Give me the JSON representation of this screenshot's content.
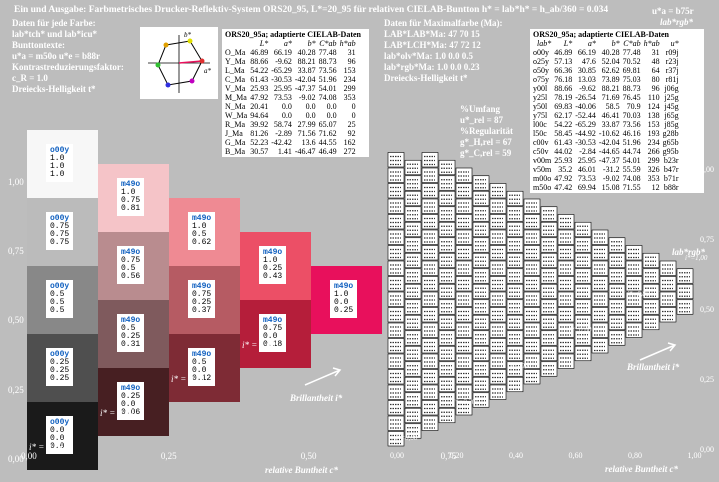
{
  "header": {
    "title": "Ein und Ausgabe: Farbmetrisches Drucker-Reflektiv-System ORS20_95, L*=20_95 für relativen CIELAB-Buntton h* = lab*h* = h_ab/360 = 0.034",
    "left_lines": [
      "Daten für jede Farbe:",
      "lab*tch* und lab*icu*",
      "Bunttontexte:",
      "u*a = m50o  u*e = b88r",
      "Kontrastreduzierungsfaktor:",
      "c_R = 1.0",
      "Dreiecks-Helligkeit t*"
    ],
    "top_right_1": "u*a = b75r",
    "top_right_2": "lab*rgb*",
    "mid_lines": [
      "Daten für Maximalfarbe (Ma):",
      "LAB*LAB*Ma: 47  70  15",
      "LAB*LCH*Ma: 47  72  12",
      "lab*olv*Ma: 1.0  0.0  0.5",
      "lab*rgb*Ma: 1.0  0.0  0.23",
      "Dreiecks-Helligkeit t*"
    ],
    "stats": [
      "%Umfang",
      "u*_rel = 87",
      "%Regularität",
      "g*_H,rel = 67",
      "g*_C,rel = 59"
    ],
    "diagram_labels": {
      "b": "b*",
      "a": "a*",
      "sub": "a"
    }
  },
  "table_left": {
    "title": "ORS20_95a; adaptierte CIELAB-Daten",
    "headers": [
      "",
      "L*",
      "a*",
      "b*",
      "C*ab",
      "h*ab"
    ],
    "rows": [
      [
        "O_Ma",
        "46.89",
        "66.19",
        "40.28",
        "77.48",
        "31"
      ],
      [
        "Y_Ma",
        "88.66",
        "-9.62",
        "88.21",
        "88.73",
        "96"
      ],
      [
        "L_Ma",
        "54.22",
        "-65.29",
        "33.87",
        "73.56",
        "153"
      ],
      [
        "C_Ma",
        "61.43",
        "-30.53",
        "-42.04",
        "51.96",
        "234"
      ],
      [
        "V_Ma",
        "25.93",
        "25.95",
        "-47.37",
        "54.01",
        "299"
      ],
      [
        "M_Ma",
        "47.92",
        "73.53",
        "-9.02",
        "74.08",
        "353"
      ],
      [
        "N_Ma",
        "20.41",
        "0.0",
        "0.0",
        "0.0",
        "0"
      ],
      [
        "W_Ma",
        "94.64",
        "0.0",
        "0.0",
        "0.0",
        "0"
      ],
      [
        "R_Ma",
        "39.92",
        "58.74",
        "27.99",
        "65.07",
        "25"
      ],
      [
        "J_Ma",
        "81.26",
        "-2.89",
        "71.56",
        "71.62",
        "92"
      ],
      [
        "G_Ma",
        "52.23",
        "-42.42",
        "13.6",
        "44.55",
        "162"
      ],
      [
        "B_Ma",
        "30.57",
        "1.41",
        "-46.47",
        "46.49",
        "272"
      ]
    ]
  },
  "table_right": {
    "title": "ORS20_95a; adaptierte CIELAB-Daten",
    "headers": [
      "lab*",
      "L*",
      "a*",
      "b*",
      "C*ab",
      "h*ab",
      "u*"
    ],
    "rows": [
      [
        "o00y",
        "46.89",
        "66.19",
        "40.28",
        "77.48",
        "31",
        "r09j"
      ],
      [
        "o25y",
        "57.13",
        "47.6",
        "52.04",
        "70.52",
        "48",
        "r23j"
      ],
      [
        "o50y",
        "66.36",
        "30.85",
        "62.62",
        "69.81",
        "64",
        "r37j"
      ],
      [
        "o75y",
        "76.18",
        "13.03",
        "73.89",
        "75.03",
        "80",
        "r81j"
      ],
      [
        "y00l",
        "88.66",
        "-9.62",
        "88.21",
        "88.73",
        "96",
        "j06g"
      ],
      [
        "y25l",
        "78.19",
        "-26.54",
        "71.69",
        "76.45",
        "110",
        "j25g"
      ],
      [
        "y50l",
        "69.83",
        "-40.06",
        "58.5",
        "70.9",
        "124",
        "j45g"
      ],
      [
        "y75l",
        "62.17",
        "-52.44",
        "46.41",
        "70.03",
        "138",
        "j65g"
      ],
      [
        "l00c",
        "54.22",
        "-65.29",
        "33.87",
        "73.56",
        "153",
        "j85g"
      ],
      [
        "l50c",
        "58.45",
        "-44.92",
        "-10.62",
        "46.16",
        "193",
        "g28b"
      ],
      [
        "c00v",
        "61.43",
        "-30.53",
        "-42.04",
        "51.96",
        "234",
        "g65b"
      ],
      [
        "c50v",
        "44.02",
        "-2.84",
        "-44.65",
        "44.74",
        "266",
        "g95b"
      ],
      [
        "v00m",
        "25.93",
        "25.95",
        "-47.37",
        "54.01",
        "299",
        "b23r"
      ],
      [
        "v50m",
        "35.2",
        "46.01",
        "-31.2",
        "55.59",
        "326",
        "b47r"
      ],
      [
        "m00o",
        "47.92",
        "73.53",
        "-9.02",
        "74.08",
        "353",
        "b71r"
      ],
      [
        "m50o",
        "47.42",
        "69.94",
        "15.08",
        "71.55",
        "12",
        "b88r"
      ]
    ]
  },
  "chart_data": {
    "type": "table",
    "title": "",
    "swatches": [
      {
        "col": 0,
        "row": 4,
        "color": "#f7f7f7",
        "label": [
          "o00y",
          "1.0",
          "1.0",
          "1.0"
        ]
      },
      {
        "col": 0,
        "row": 3,
        "color": "#bbbbbb",
        "label": [
          "o00y",
          "0.75",
          "0.75",
          "0.75"
        ]
      },
      {
        "col": 0,
        "row": 2,
        "color": "#888888",
        "label": [
          "o00y",
          "0.5",
          "0.5",
          "0.5"
        ]
      },
      {
        "col": 0,
        "row": 1,
        "color": "#4f4f4f",
        "label": [
          "o00y",
          "0.25",
          "0.25",
          "0.25"
        ]
      },
      {
        "col": 0,
        "row": 0,
        "color": "#1a1a1a",
        "label": [
          "o00y",
          "0.0",
          "0.0",
          "0.0"
        ]
      },
      {
        "col": 1,
        "row": 3.5,
        "color": "#f5c4c8",
        "label": [
          "m49o",
          "1.0",
          "0.75",
          "0.81"
        ]
      },
      {
        "col": 1,
        "row": 2.5,
        "color": "#b98c8f",
        "label": [
          "m49o",
          "0.75",
          "0.5",
          "0.56"
        ]
      },
      {
        "col": 1,
        "row": 1.5,
        "color": "#7f5a5d",
        "label": [
          "m49o",
          "0.5",
          "0.25",
          "0.31"
        ]
      },
      {
        "col": 1,
        "row": 0.5,
        "color": "#471f22",
        "label": [
          "m49o",
          "0.25",
          "0.0",
          "0.06"
        ]
      },
      {
        "col": 2,
        "row": 3,
        "color": "#ef8a93",
        "label": [
          "m49o",
          "1.0",
          "0.5",
          "0.62"
        ]
      },
      {
        "col": 2,
        "row": 2,
        "color": "#b65b63",
        "label": [
          "m49o",
          "0.75",
          "0.25",
          "0.37"
        ]
      },
      {
        "col": 2,
        "row": 1,
        "color": "#7e2b35",
        "label": [
          "m49o",
          "0.5",
          "0.0",
          "0.12"
        ]
      },
      {
        "col": 3,
        "row": 2.5,
        "color": "#ec4f66",
        "label": [
          "m49o",
          "1.0",
          "0.25",
          "0.43"
        ]
      },
      {
        "col": 3,
        "row": 1.5,
        "color": "#b51e3a",
        "label": [
          "m49o",
          "0.75",
          "0.0",
          "0.18"
        ]
      },
      {
        "col": 4,
        "row": 2,
        "color": "#e8105c",
        "label": [
          "m49o",
          "1.0",
          "0.0",
          "0.25"
        ]
      }
    ],
    "xlabel": "relative Buntheit c*",
    "ylabel": "",
    "xticks_left": [
      "0,00",
      "0,25",
      "0,50",
      "0,75",
      "1,00"
    ],
    "yticks_left": [
      "0,00",
      "0,25",
      "0,50",
      "0,75",
      "1,00"
    ],
    "xticks_right": [
      "0,00",
      "0,20",
      "0,40",
      "0,60",
      "0,80",
      "1,00"
    ],
    "yticks_right": [
      "0,00",
      "0,25",
      "0,50",
      "0,75",
      "1,00"
    ],
    "i_labels_left": [
      "i* = 0,25",
      "i* = 0,50",
      "i* = 0,75",
      "i* = 1,00"
    ],
    "i_labels_right": [
      "i*=0,00",
      "i*=0,20",
      "i*=0,40",
      "i*=0,60",
      "i*=0,80",
      "i*=1,00"
    ],
    "arrow_label": "Brillantheit i*",
    "right_top_label": "lab*rgb*"
  }
}
